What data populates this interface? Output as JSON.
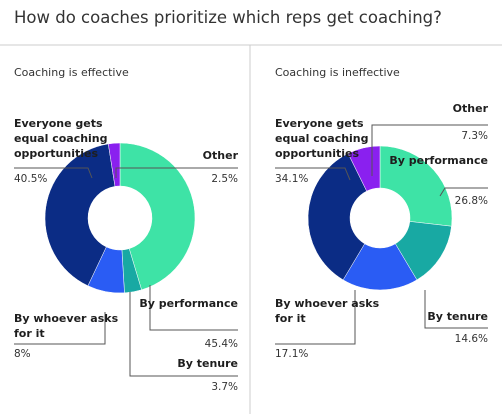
{
  "title": "How do coaches prioritize which reps get coaching?",
  "chart_data": [
    {
      "type": "donut",
      "title": "Coaching is effective",
      "categories": [
        "By performance",
        "By tenure",
        "By whoever asks for it",
        "Everyone gets equal coaching opportunities",
        "Other"
      ],
      "values": [
        45.4,
        3.7,
        8,
        40.5,
        2.5
      ],
      "value_labels": [
        "45.4%",
        "3.7%",
        "8%",
        "40.5%",
        "2.5%"
      ],
      "colors": [
        "#3ee3a6",
        "#18a9a3",
        "#2a5cf4",
        "#0b2c85",
        "#8a20ef"
      ]
    },
    {
      "type": "donut",
      "title": "Coaching is ineffective",
      "categories": [
        "By performance",
        "By tenure",
        "By whoever asks for it",
        "Everyone gets equal coaching opportunities",
        "Other"
      ],
      "values": [
        26.8,
        14.6,
        17.1,
        34.1,
        7.3
      ],
      "value_labels": [
        "26.8%",
        "14.6%",
        "17.1%",
        "34.1%",
        "7.3%"
      ],
      "colors": [
        "#3ee3a6",
        "#18a9a3",
        "#2a5cf4",
        "#0b2c85",
        "#8a20ef"
      ]
    }
  ]
}
